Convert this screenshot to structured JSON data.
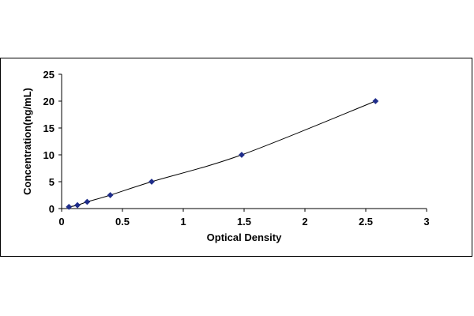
{
  "chart_data": {
    "type": "scatter",
    "xlabel": "Optical Density",
    "ylabel": "Concentration(ng/mL)",
    "xlim": [
      0,
      3
    ],
    "ylim": [
      0,
      25
    ],
    "x_ticks": [
      "0",
      "0.5",
      "1",
      "1.5",
      "2",
      "2.5",
      "3"
    ],
    "y_ticks": [
      "0",
      "5",
      "10",
      "15",
      "20",
      "25"
    ],
    "grid": false,
    "smooth_line": true,
    "series": [
      {
        "color": "#1f2d8a",
        "x": [
          0.06,
          0.13,
          0.21,
          0.4,
          0.74,
          1.48,
          2.58
        ],
        "y": [
          0.31,
          0.63,
          1.25,
          2.5,
          5,
          10,
          20
        ]
      }
    ]
  }
}
